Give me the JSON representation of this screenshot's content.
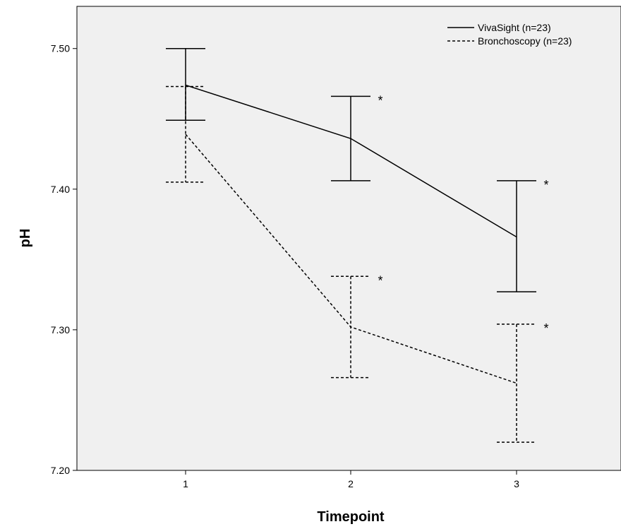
{
  "chart_data": {
    "type": "line",
    "xlabel": "Timepoint",
    "ylabel": "pH",
    "categories": [
      "1",
      "2",
      "3"
    ],
    "ylim": [
      7.2,
      7.53
    ],
    "yticks": [
      "7.20",
      "7.30",
      "7.40",
      "7.50"
    ],
    "ytick_values": [
      7.2,
      7.3,
      7.4,
      7.5
    ],
    "grid": false,
    "legend_position": "top-right",
    "plot_background": "#f0f0f0",
    "series": [
      {
        "name": "VivaSight (n=23)",
        "style": "solid",
        "values": [
          7.474,
          7.436,
          7.366
        ],
        "err_low": [
          7.449,
          7.406,
          7.327
        ],
        "err_high": [
          7.5,
          7.466,
          7.406
        ],
        "significance": [
          "",
          "*",
          "*"
        ]
      },
      {
        "name": "Bronchoscopy (n=23)",
        "style": "dashed",
        "values": [
          7.439,
          7.302,
          7.262
        ],
        "err_low": [
          7.405,
          7.266,
          7.22
        ],
        "err_high": [
          7.473,
          7.338,
          7.304
        ],
        "significance": [
          "",
          "*",
          "*"
        ]
      }
    ]
  }
}
